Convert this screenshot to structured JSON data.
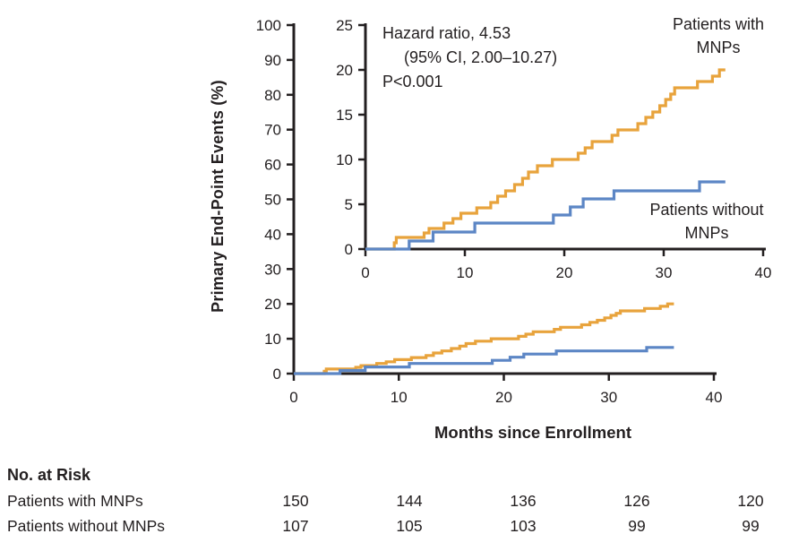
{
  "chart_data": {
    "type": "line",
    "subtype": "kaplan-meier-step",
    "title": "",
    "xlabel": "Months since Enrollment",
    "ylabel": "Primary End-Point Events (%)",
    "grid": false,
    "main_axis": {
      "xlim": [
        0,
        40
      ],
      "ylim": [
        0,
        100
      ],
      "xticks": [
        0,
        10,
        20,
        30,
        40
      ],
      "yticks": [
        0,
        10,
        20,
        30,
        40,
        50,
        60,
        70,
        80,
        90,
        100
      ]
    },
    "inset_axis": {
      "xlim": [
        0,
        40
      ],
      "ylim": [
        0,
        25
      ],
      "xticks": [
        0,
        10,
        20,
        30,
        40
      ],
      "yticks": [
        0,
        5,
        10,
        15,
        20,
        25
      ]
    },
    "annotation": {
      "line1": "Hazard ratio, 4.53",
      "line2": "(95% CI, 2.00–10.27)",
      "line3": "P<0.001"
    },
    "colors": {
      "axis": "#231F20",
      "with_mnps": "#E8A33C",
      "without_mnps": "#5C86C5"
    },
    "series": [
      {
        "name": "Patients with MNPs",
        "color": "#E8A33C",
        "points": [
          [
            0,
            0
          ],
          [
            2.9,
            0.7
          ],
          [
            3.1,
            1.3
          ],
          [
            5.9,
            1.8
          ],
          [
            6.4,
            2.3
          ],
          [
            7.9,
            2.9
          ],
          [
            8.8,
            3.4
          ],
          [
            9.6,
            4.0
          ],
          [
            11.2,
            4.6
          ],
          [
            12.6,
            5.2
          ],
          [
            13.3,
            5.9
          ],
          [
            14.1,
            6.5
          ],
          [
            15.0,
            7.2
          ],
          [
            15.8,
            7.9
          ],
          [
            16.4,
            8.6
          ],
          [
            17.3,
            9.3
          ],
          [
            18.8,
            10.0
          ],
          [
            21.4,
            10.7
          ],
          [
            22.1,
            11.3
          ],
          [
            22.8,
            12.0
          ],
          [
            24.8,
            12.7
          ],
          [
            25.4,
            13.3
          ],
          [
            27.4,
            14.0
          ],
          [
            28.2,
            14.7
          ],
          [
            28.9,
            15.3
          ],
          [
            29.6,
            16.0
          ],
          [
            30.2,
            16.7
          ],
          [
            30.7,
            17.3
          ],
          [
            31.1,
            18.0
          ],
          [
            33.4,
            18.7
          ],
          [
            34.9,
            19.3
          ],
          [
            35.6,
            20.0
          ],
          [
            36.2,
            20.0
          ]
        ]
      },
      {
        "name": "Patients without MNPs",
        "color": "#5C86C5",
        "points": [
          [
            0,
            0
          ],
          [
            4.4,
            0.9
          ],
          [
            6.8,
            1.9
          ],
          [
            11.0,
            2.9
          ],
          [
            18.9,
            3.8
          ],
          [
            20.6,
            4.7
          ],
          [
            21.9,
            5.6
          ],
          [
            25.0,
            6.5
          ],
          [
            33.6,
            7.5
          ],
          [
            36.2,
            7.5
          ]
        ]
      }
    ]
  },
  "labels": {
    "with_mnps_line1": "Patients with",
    "with_mnps_line2": "MNPs",
    "without_mnps_line1": "Patients without",
    "without_mnps_line2": "MNPs"
  },
  "risk_table": {
    "title": "No. at Risk",
    "rows": [
      {
        "label": "Patients with MNPs",
        "values": [
          "150",
          "144",
          "136",
          "126",
          "120"
        ]
      },
      {
        "label": "Patients without MNPs",
        "values": [
          "107",
          "105",
          "103",
          "99",
          "99"
        ]
      }
    ]
  }
}
